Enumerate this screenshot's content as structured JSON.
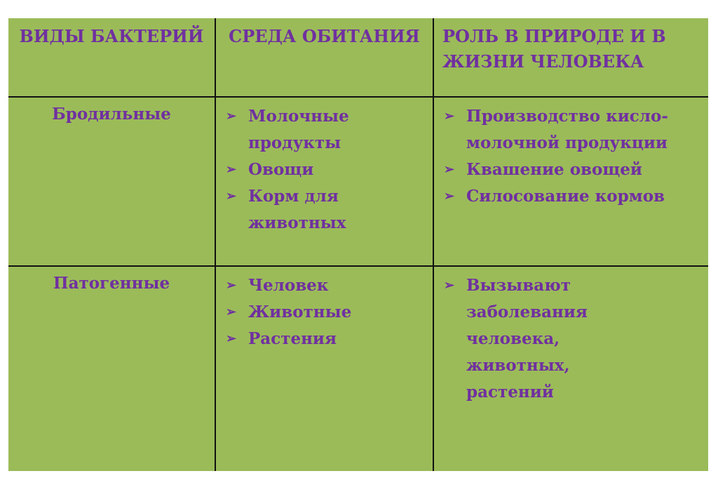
{
  "table": {
    "headers": [
      "ВИДЫ БАКТЕРИЙ",
      "СРЕДА ОБИТАНИЯ",
      "РОЛЬ В ПРИРОДЕ И В ЖИЗНИ ЧЕЛОВЕКА"
    ],
    "rows": [
      {
        "kind": "Бродильные",
        "habitat": [
          "Молочные продукты",
          "Овощи",
          "Корм для животных"
        ],
        "role": [
          "Производство кисло-молочной продукции",
          "Квашение овощей",
          "Силосование кормов"
        ]
      },
      {
        "kind": "Патогенные",
        "habitat": [
          "Человек",
          "Животные",
          "Растения"
        ],
        "role": [
          "Вызывают заболевания человека, животных, растений"
        ]
      }
    ]
  },
  "bullet_icon": "arrowhead-bullet-icon",
  "colors": {
    "background": "#9bbb59",
    "text": "#7030a0",
    "border": "#111111"
  }
}
